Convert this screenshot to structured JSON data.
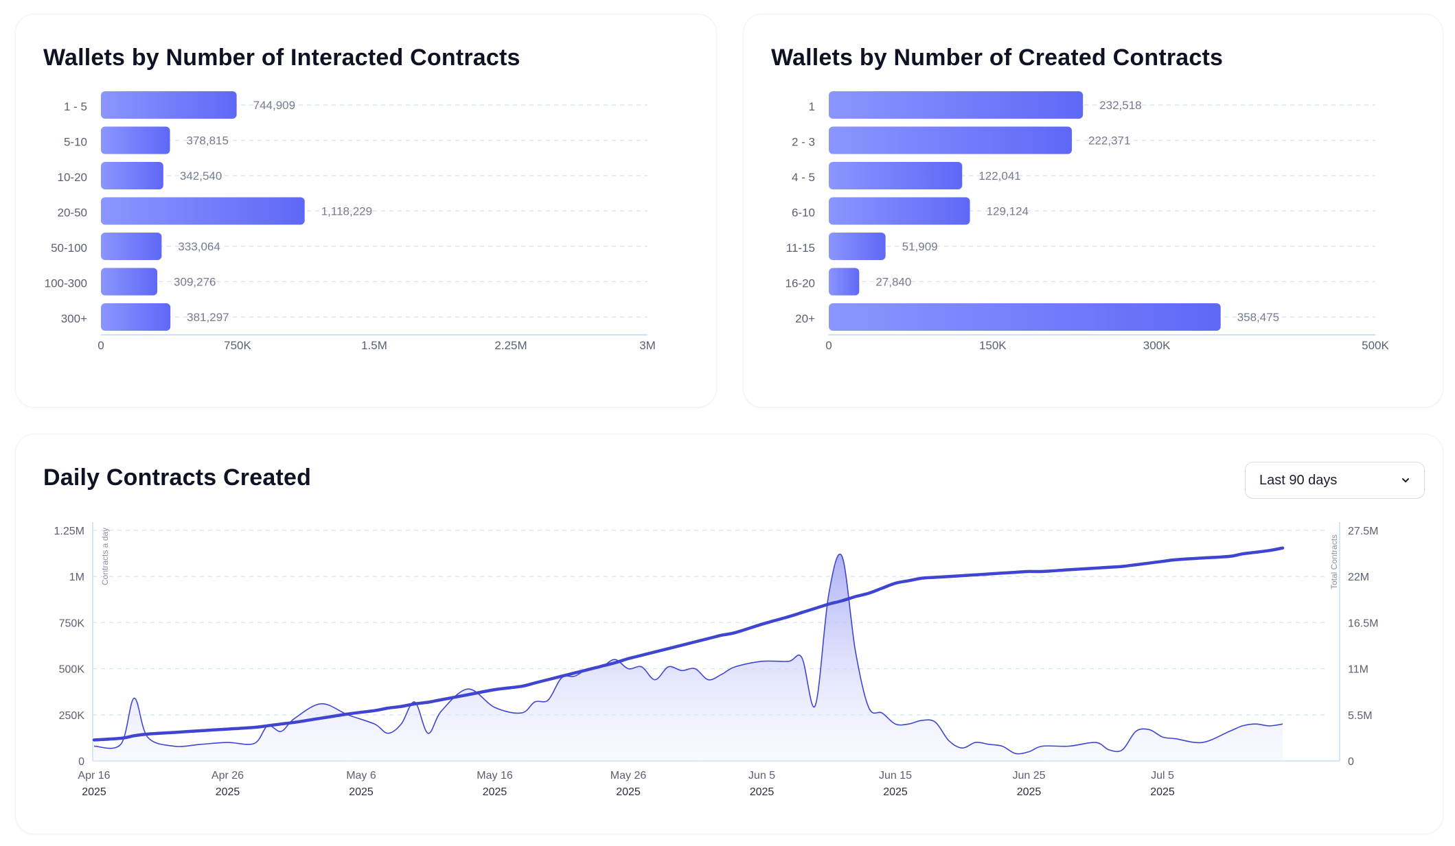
{
  "colors": {
    "bar_gradient_start": "#8b96ff",
    "bar_gradient_end": "#5f68f6",
    "line": "#3f45d1",
    "area_top": "#a9aef5",
    "grid": "#cfe3f6",
    "axis_text": "#5b6070"
  },
  "chart_data": [
    {
      "type": "bar",
      "orientation": "horizontal",
      "title": "Wallets by Number of Interacted Contracts",
      "categories": [
        "1 - 5",
        "5-10",
        "10-20",
        "20-50",
        "50-100",
        "100-300",
        "300+"
      ],
      "values": [
        744909,
        378815,
        342540,
        1118229,
        333064,
        309276,
        381297
      ],
      "value_labels": [
        "744,909",
        "378,815",
        "342,540",
        "1,118,229",
        "333,064",
        "309,276",
        "381,297"
      ],
      "xlim": [
        0,
        3000000
      ],
      "xticks": [
        0,
        750000,
        1500000,
        2250000,
        3000000
      ],
      "xtick_labels": [
        "0",
        "750K",
        "1.5M",
        "2.25M",
        "3M"
      ],
      "grid": true
    },
    {
      "type": "bar",
      "orientation": "horizontal",
      "title": "Wallets by Number of Created Contracts",
      "categories": [
        "1",
        "2 - 3",
        "4 - 5",
        "6-10",
        "11-15",
        "16-20",
        "20+"
      ],
      "values": [
        232518,
        222371,
        122041,
        129124,
        51909,
        27840,
        358475
      ],
      "value_labels": [
        "232,518",
        "222,371",
        "122,041",
        "129,124",
        "51,909",
        "27,840",
        "358,475"
      ],
      "xlim": [
        0,
        500000
      ],
      "xticks": [
        0,
        150000,
        300000,
        500000
      ],
      "xtick_labels": [
        "0",
        "150K",
        "300K",
        "500K"
      ],
      "grid": true
    },
    {
      "type": "area",
      "title": "Daily Contracts Created",
      "ylabel": "Contracts a day",
      "y2label": "Total Contracts",
      "x": [
        "2025-04-16",
        "2025-04-18",
        "2025-04-19",
        "2025-04-20",
        "2025-04-22",
        "2025-04-24",
        "2025-04-26",
        "2025-04-28",
        "2025-04-29",
        "2025-04-30",
        "2025-05-01",
        "2025-05-03",
        "2025-05-05",
        "2025-05-07",
        "2025-05-08",
        "2025-05-09",
        "2025-05-10",
        "2025-05-11",
        "2025-05-12",
        "2025-05-14",
        "2025-05-16",
        "2025-05-18",
        "2025-05-19",
        "2025-05-20",
        "2025-05-21",
        "2025-05-22",
        "2025-05-23",
        "2025-05-24",
        "2025-05-25",
        "2025-05-26",
        "2025-05-27",
        "2025-05-28",
        "2025-05-29",
        "2025-05-30",
        "2025-05-31",
        "2025-06-01",
        "2025-06-02",
        "2025-06-03",
        "2025-06-05",
        "2025-06-07",
        "2025-06-08",
        "2025-06-09",
        "2025-06-10",
        "2025-06-11",
        "2025-06-12",
        "2025-06-13",
        "2025-06-14",
        "2025-06-15",
        "2025-06-16",
        "2025-06-17",
        "2025-06-18",
        "2025-06-19",
        "2025-06-20",
        "2025-06-21",
        "2025-06-22",
        "2025-06-23",
        "2025-06-24",
        "2025-06-25",
        "2025-06-26",
        "2025-06-28",
        "2025-06-30",
        "2025-07-01",
        "2025-07-02",
        "2025-07-03",
        "2025-07-04",
        "2025-07-05",
        "2025-07-06",
        "2025-07-08",
        "2025-07-10",
        "2025-07-11",
        "2025-07-12",
        "2025-07-13",
        "2025-07-14"
      ],
      "series": [
        {
          "name": "Contracts a day",
          "axis": "left",
          "values": [
            80000,
            90000,
            340000,
            130000,
            80000,
            90000,
            100000,
            95000,
            190000,
            160000,
            230000,
            310000,
            250000,
            200000,
            150000,
            200000,
            320000,
            150000,
            270000,
            390000,
            290000,
            260000,
            320000,
            330000,
            450000,
            460000,
            500000,
            510000,
            550000,
            500000,
            510000,
            440000,
            510000,
            490000,
            500000,
            440000,
            470000,
            510000,
            540000,
            540000,
            560000,
            300000,
            900000,
            1110000,
            600000,
            290000,
            260000,
            200000,
            200000,
            220000,
            210000,
            110000,
            70000,
            100000,
            90000,
            80000,
            40000,
            50000,
            80000,
            80000,
            100000,
            60000,
            60000,
            160000,
            170000,
            130000,
            120000,
            100000,
            160000,
            190000,
            200000,
            190000,
            200000
          ]
        },
        {
          "name": "Total Contracts",
          "axis": "right",
          "values": [
            2500000,
            2700000,
            3000000,
            3200000,
            3400000,
            3600000,
            3800000,
            4000000,
            4200000,
            4400000,
            4600000,
            5100000,
            5600000,
            6000000,
            6300000,
            6500000,
            6800000,
            7000000,
            7300000,
            7900000,
            8500000,
            8900000,
            9300000,
            9700000,
            10100000,
            10500000,
            10900000,
            11300000,
            11700000,
            12200000,
            12600000,
            13000000,
            13400000,
            13800000,
            14200000,
            14600000,
            15000000,
            15300000,
            16300000,
            17200000,
            17700000,
            18200000,
            18700000,
            19100000,
            19600000,
            20000000,
            20600000,
            21200000,
            21500000,
            21800000,
            21900000,
            22000000,
            22100000,
            22200000,
            22300000,
            22400000,
            22500000,
            22600000,
            22600000,
            22800000,
            23000000,
            23100000,
            23200000,
            23400000,
            23600000,
            23800000,
            24000000,
            24200000,
            24400000,
            24700000,
            24900000,
            25100000,
            25400000
          ]
        }
      ],
      "ylim": [
        0,
        1250000
      ],
      "yticks": [
        0,
        250000,
        500000,
        750000,
        1000000,
        1250000
      ],
      "ytick_labels": [
        "0",
        "250K",
        "500K",
        "750K",
        "1M",
        "1.25M"
      ],
      "y2lim": [
        0,
        27500000
      ],
      "y2ticks": [
        0,
        5500000,
        11000000,
        16500000,
        22000000,
        27500000
      ],
      "y2tick_labels": [
        "0",
        "5.5M",
        "11M",
        "16.5M",
        "22M",
        "27.5M"
      ],
      "xticks": [
        "2025-04-16",
        "2025-04-26",
        "2025-05-06",
        "2025-05-16",
        "2025-05-26",
        "2025-06-05",
        "2025-06-15",
        "2025-06-25",
        "2025-07-05"
      ],
      "xtick_labels": [
        [
          "Apr 16",
          "2025"
        ],
        [
          "Apr 26",
          "2025"
        ],
        [
          "May 6",
          "2025"
        ],
        [
          "May 16",
          "2025"
        ],
        [
          "May 26",
          "2025"
        ],
        [
          "Jun 5",
          "2025"
        ],
        [
          "Jun 15",
          "2025"
        ],
        [
          "Jun 25",
          "2025"
        ],
        [
          "Jul 5",
          "2025"
        ]
      ],
      "grid": true
    }
  ],
  "controls": {
    "range_select": {
      "selected": "Last 90 days",
      "icon": "chevron-down-icon"
    }
  }
}
